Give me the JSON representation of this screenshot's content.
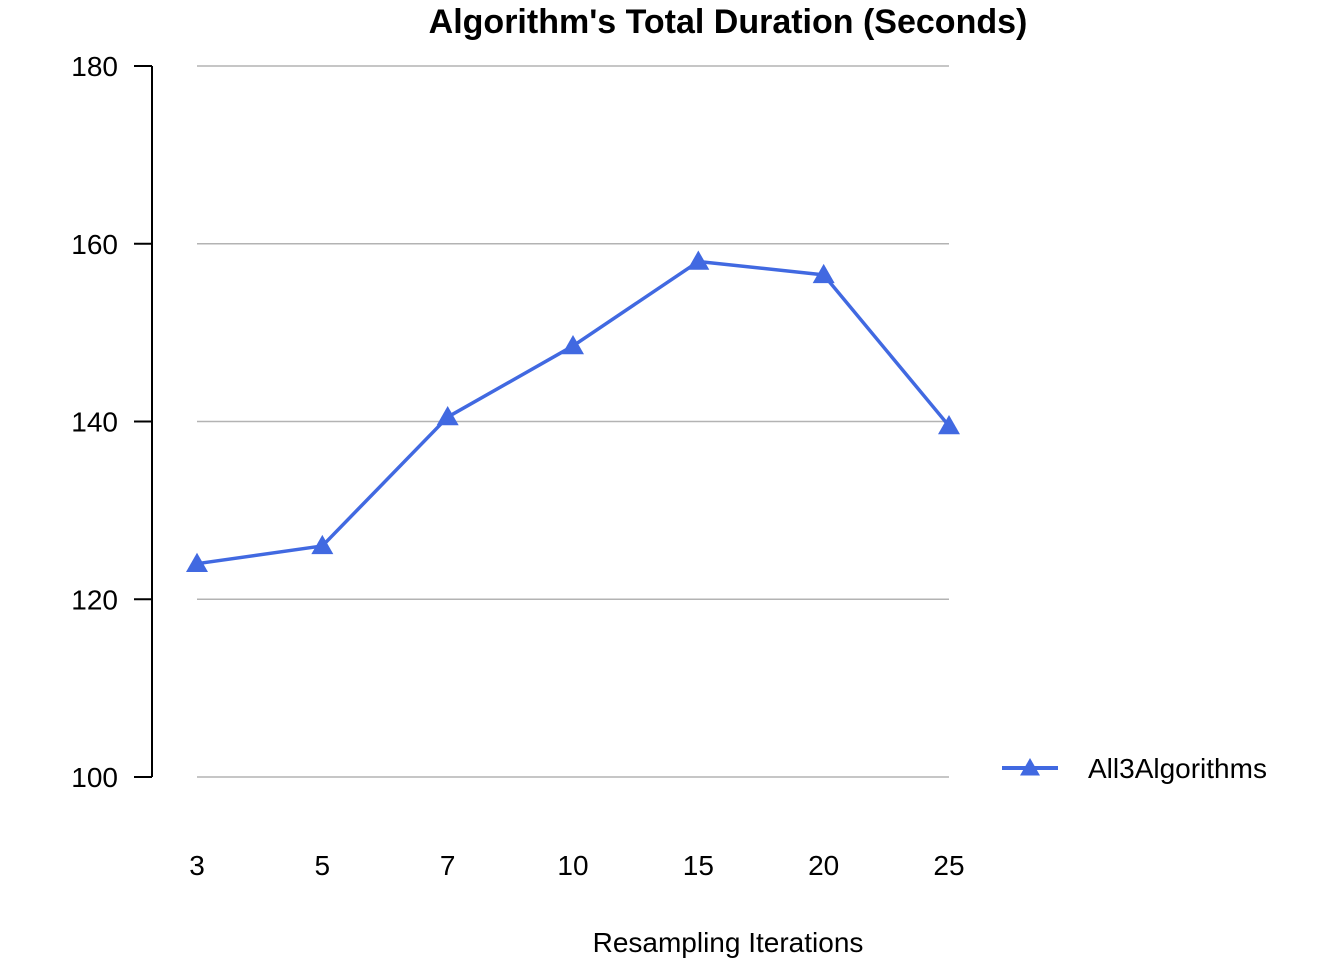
{
  "chart_data": {
    "type": "line",
    "title": "Algorithm's Total Duration (Seconds)",
    "xlabel": "Resampling Iterations",
    "ylabel": "",
    "categories": [
      "3",
      "5",
      "7",
      "10",
      "15",
      "20",
      "25"
    ],
    "series": [
      {
        "name": "All3Algorithms",
        "values": [
          124,
          126,
          140.5,
          148.5,
          158,
          156.5,
          139.5
        ],
        "color": "#4169e1",
        "marker": "triangle"
      }
    ],
    "ylim": [
      100,
      180
    ],
    "yticks": [
      100,
      120,
      140,
      160,
      180
    ],
    "grid": true,
    "legend_position": "right"
  }
}
